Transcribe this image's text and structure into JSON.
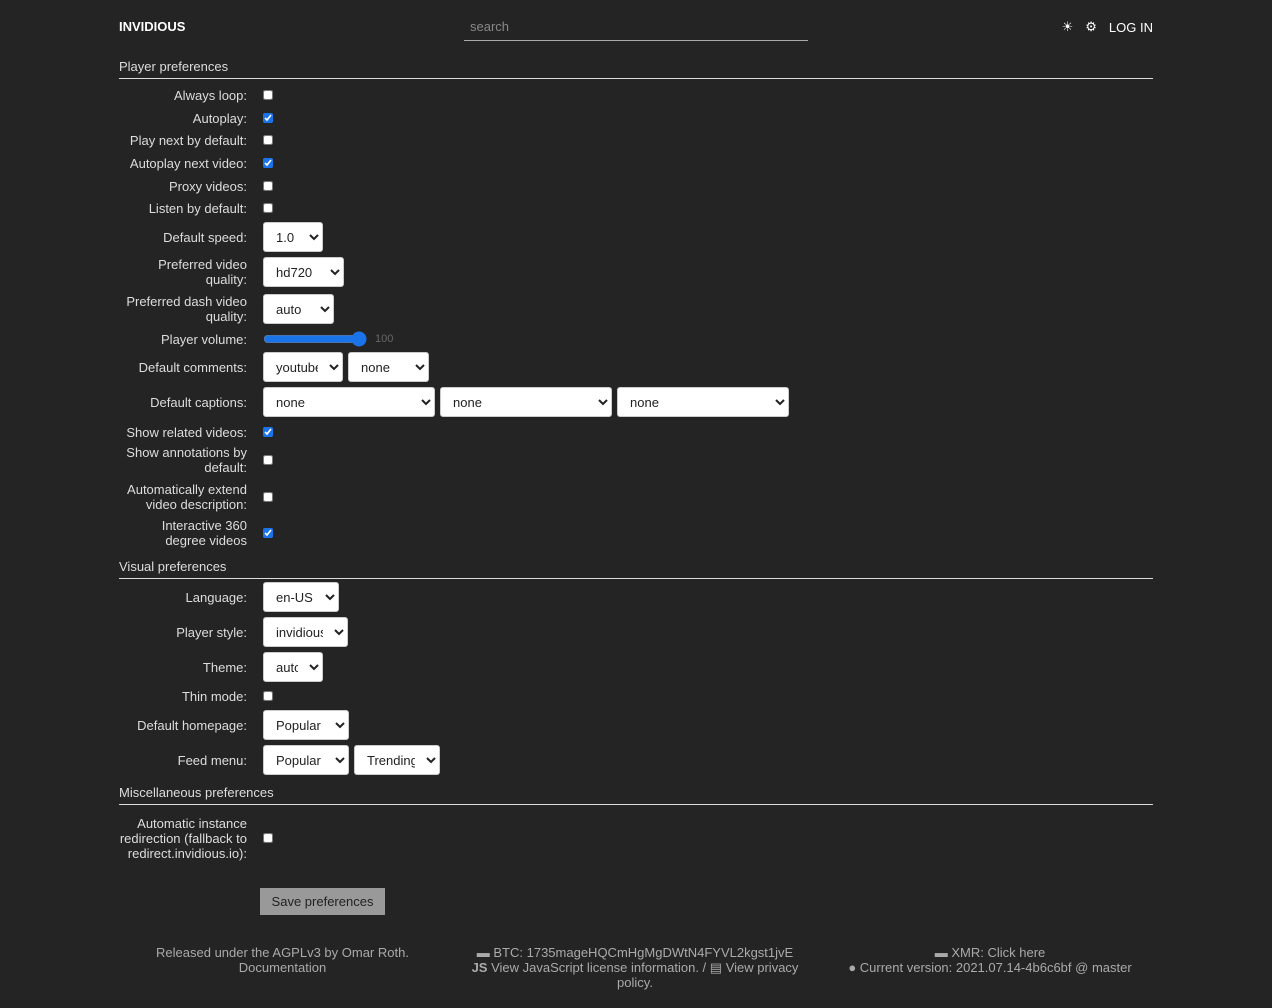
{
  "header": {
    "brand": "INVIDIOUS",
    "search_placeholder": "search",
    "theme_icon": "☀",
    "settings_icon": "⚙",
    "login": "LOG IN"
  },
  "player": {
    "title": "Player preferences",
    "always_loop": {
      "label": "Always loop:",
      "checked": false
    },
    "autoplay": {
      "label": "Autoplay:",
      "checked": true
    },
    "play_next": {
      "label": "Play next by default:",
      "checked": false
    },
    "autoplay_next": {
      "label": "Autoplay next video:",
      "checked": true
    },
    "proxy": {
      "label": "Proxy videos:",
      "checked": false
    },
    "listen": {
      "label": "Listen by default:",
      "checked": false
    },
    "speed": {
      "label": "Default speed:",
      "value": "1.0"
    },
    "quality": {
      "label": "Preferred video quality:",
      "value": "hd720"
    },
    "dash": {
      "label": "Preferred dash video quality:",
      "value": "auto"
    },
    "volume": {
      "label": "Player volume:",
      "value": "100"
    },
    "comments": {
      "label": "Default comments:",
      "values": [
        "youtube",
        "none"
      ]
    },
    "captions": {
      "label": "Default captions:",
      "values": [
        "none",
        "none",
        "none"
      ]
    },
    "related": {
      "label": "Show related videos:",
      "checked": true
    },
    "annotations": {
      "label": "Show annotations by default:",
      "checked": false
    },
    "extend": {
      "label": "Automatically extend video description:",
      "checked": false
    },
    "v360": {
      "label": "Interactive 360 degree videos",
      "checked": true
    }
  },
  "visual": {
    "title": "Visual preferences",
    "language": {
      "label": "Language:",
      "value": "en-US"
    },
    "style": {
      "label": "Player style:",
      "value": "invidious"
    },
    "theme": {
      "label": "Theme:",
      "value": "auto"
    },
    "thin": {
      "label": "Thin mode:",
      "checked": false
    },
    "homepage": {
      "label": "Default homepage:",
      "value": "Popular"
    },
    "feed": {
      "label": "Feed menu:",
      "values": [
        "Popular",
        "Trending"
      ]
    }
  },
  "misc": {
    "title": "Miscellaneous preferences",
    "redirect": {
      "label": "Automatic instance redirection (fallback to redirect.invidious.io):",
      "checked": false
    }
  },
  "save": "Save preferences",
  "footer": {
    "license": "Released under the AGPLv3 by Omar Roth.",
    "docs": "Documentation",
    "btc": "BTC: 1735mageHQCmHgMgDWtN4FYVL2kgst1jvE",
    "js": "View JavaScript license information.",
    "privacy": "View privacy policy.",
    "xmr": "XMR: Click here",
    "version": "Current version: 2021.07.14-4b6c6bf @ master"
  },
  "colors": {
    "bg": "#242424",
    "accent": "#1a73e8"
  }
}
